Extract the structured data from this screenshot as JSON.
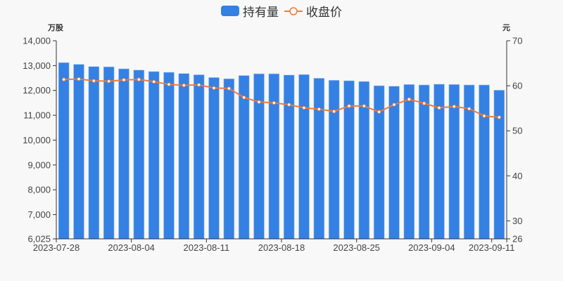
{
  "legend": {
    "bar_label": "持有量",
    "line_label": "收盘价"
  },
  "axes": {
    "left_unit": "万股",
    "right_unit": "元",
    "left_ticks": [
      "14,000",
      "13,000",
      "12,000",
      "11,000",
      "10,000",
      "9,000",
      "8,000",
      "7,000",
      "6,025"
    ],
    "right_ticks": [
      "70",
      "60",
      "50",
      "40",
      "30",
      "26"
    ]
  },
  "colors": {
    "bar": "#3481e3",
    "bar_edge": "#a9c8f0",
    "line": "#ec7c3c",
    "axis": "#333333",
    "text": "#444444",
    "background": "#f8f8f8"
  },
  "chart_data": {
    "type": "bar",
    "title": "",
    "legend_position": "top",
    "grid": false,
    "x": [
      "2023-07-28",
      "2023-07-31",
      "2023-08-01",
      "2023-08-02",
      "2023-08-03",
      "2023-08-04",
      "2023-08-07",
      "2023-08-08",
      "2023-08-09",
      "2023-08-10",
      "2023-08-11",
      "2023-08-14",
      "2023-08-15",
      "2023-08-16",
      "2023-08-17",
      "2023-08-18",
      "2023-08-21",
      "2023-08-22",
      "2023-08-23",
      "2023-08-24",
      "2023-08-25",
      "2023-08-28",
      "2023-08-29",
      "2023-08-30",
      "2023-08-31",
      "2023-09-04",
      "2023-09-05",
      "2023-09-06",
      "2023-09-07",
      "2023-09-11"
    ],
    "x_tick_labels": [
      {
        "index": 0,
        "label": "2023-07-28"
      },
      {
        "index": 5,
        "label": "2023-08-04"
      },
      {
        "index": 10,
        "label": "2023-08-11"
      },
      {
        "index": 15,
        "label": "2023-08-18"
      },
      {
        "index": 20,
        "label": "2023-08-25"
      },
      {
        "index": 25,
        "label": "2023-09-04"
      },
      {
        "index": 29,
        "label": "2023-09-11"
      }
    ],
    "series": [
      {
        "name": "持有量",
        "type": "bar",
        "axis": "left",
        "unit": "万股",
        "values": [
          13120,
          13050,
          12960,
          12950,
          12870,
          12820,
          12760,
          12730,
          12680,
          12630,
          12520,
          12470,
          12600,
          12670,
          12670,
          12620,
          12640,
          12490,
          12410,
          12390,
          12360,
          12190,
          12170,
          12240,
          12220,
          12250,
          12240,
          12220,
          12220,
          12010
        ]
      },
      {
        "name": "收盘价",
        "type": "line",
        "axis": "right",
        "unit": "元",
        "values": [
          61.4,
          61.5,
          61.1,
          61.0,
          61.3,
          61.4,
          60.9,
          60.3,
          60.1,
          60.2,
          59.5,
          59.4,
          57.4,
          56.4,
          56.2,
          55.8,
          55.1,
          54.8,
          54.3,
          55.5,
          55.5,
          54.2,
          55.8,
          57.0,
          56.1,
          55.1,
          55.4,
          54.9,
          53.3,
          53.0
        ]
      }
    ],
    "ylabel_left": "万股",
    "ylabel_right": "元",
    "ylim_left": [
      6025,
      14000
    ],
    "ylim_right": [
      26,
      70
    ]
  }
}
